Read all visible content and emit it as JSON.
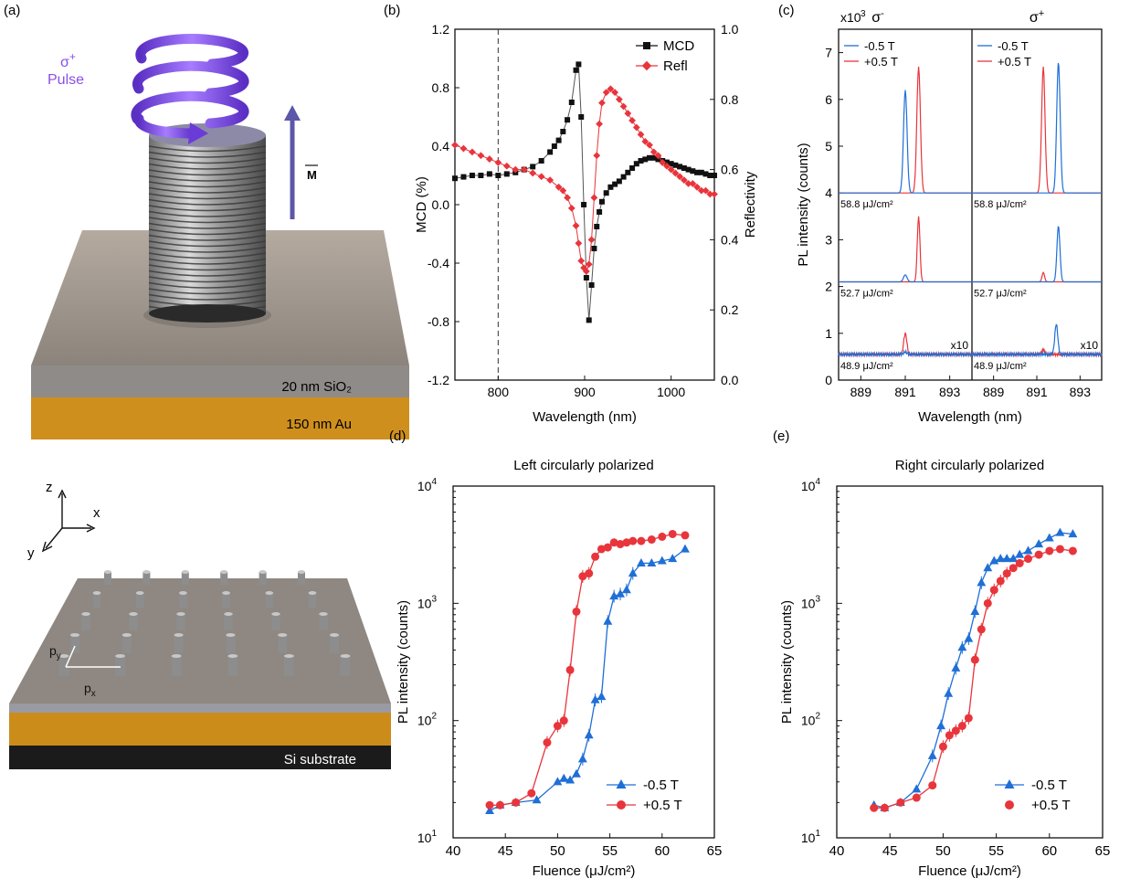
{
  "colors": {
    "blue": "#1f6fd6",
    "red": "#e8353c",
    "black": "#111111",
    "purple": "#7b3fe0",
    "gold": "#d89a1f"
  },
  "panel_a": {
    "label": "(a)",
    "pulse_sigma": "σ",
    "pulse_sup": "+",
    "pulse_word": "Pulse",
    "magnet_label": "M",
    "layer_sio2": "20 nm SiO₂",
    "layer_au": "150 nm Au"
  },
  "panel_array": {
    "axis_z": "z",
    "axis_x": "x",
    "axis_y": "y",
    "py_main": "p",
    "py_sub": "y",
    "px_main": "p",
    "px_sub": "x",
    "substrate": "Si substrate"
  },
  "chart_data": [
    {
      "panel": "(b)",
      "type": "line",
      "xlabel": "Wavelength (nm)",
      "ylabel_left": "MCD (%)",
      "ylabel_right": "Reflectivity",
      "xlim": [
        750,
        1050
      ],
      "ylim_left": [
        -1.2,
        1.2
      ],
      "ylim_right": [
        0.0,
        1.0
      ],
      "xticks": [
        "800",
        "900",
        "1000"
      ],
      "yticks_left": [
        "-1.2",
        "-0.8",
        "-0.4",
        "0.0",
        "0.4",
        "0.8",
        "1.2"
      ],
      "yticks_right": [
        "0.0",
        "0.2",
        "0.4",
        "0.6",
        "0.8",
        "1.0"
      ],
      "dashed_line_x": 800,
      "legend": [
        "MCD",
        "Refl"
      ],
      "series": [
        {
          "name": "MCD",
          "axis": "left",
          "marker": "square",
          "x": [
            750,
            760,
            770,
            780,
            790,
            800,
            810,
            820,
            830,
            840,
            850,
            860,
            865,
            870,
            875,
            880,
            885,
            890,
            893,
            896,
            899,
            902,
            905,
            908,
            911,
            914,
            917,
            920,
            925,
            930,
            935,
            940,
            945,
            950,
            955,
            960,
            965,
            970,
            975,
            980,
            985,
            990,
            995,
            1000,
            1005,
            1010,
            1015,
            1020,
            1025,
            1030,
            1035,
            1040,
            1045,
            1050
          ],
          "y": [
            0.18,
            0.19,
            0.2,
            0.2,
            0.21,
            0.2,
            0.21,
            0.22,
            0.24,
            0.26,
            0.3,
            0.36,
            0.4,
            0.44,
            0.5,
            0.58,
            0.7,
            0.92,
            0.96,
            0.6,
            0.0,
            -0.5,
            -0.79,
            -0.55,
            -0.3,
            -0.15,
            -0.05,
            0.02,
            0.08,
            0.12,
            0.14,
            0.16,
            0.19,
            0.22,
            0.25,
            0.28,
            0.3,
            0.31,
            0.32,
            0.32,
            0.31,
            0.3,
            0.29,
            0.28,
            0.27,
            0.26,
            0.25,
            0.24,
            0.23,
            0.22,
            0.22,
            0.21,
            0.2,
            0.2
          ]
        },
        {
          "name": "Refl",
          "axis": "right",
          "marker": "diamond",
          "x": [
            750,
            760,
            770,
            780,
            790,
            800,
            810,
            820,
            830,
            840,
            850,
            860,
            870,
            875,
            880,
            885,
            890,
            893,
            896,
            899,
            902,
            905,
            908,
            911,
            914,
            917,
            920,
            925,
            930,
            935,
            940,
            945,
            950,
            955,
            960,
            965,
            970,
            975,
            980,
            985,
            990,
            995,
            1000,
            1005,
            1010,
            1015,
            1020,
            1025,
            1030,
            1035,
            1040,
            1045,
            1050
          ],
          "y": [
            0.67,
            0.66,
            0.65,
            0.64,
            0.63,
            0.62,
            0.61,
            0.6,
            0.6,
            0.59,
            0.58,
            0.57,
            0.55,
            0.54,
            0.52,
            0.49,
            0.44,
            0.39,
            0.34,
            0.32,
            0.31,
            0.33,
            0.4,
            0.52,
            0.64,
            0.73,
            0.79,
            0.82,
            0.83,
            0.82,
            0.8,
            0.78,
            0.76,
            0.74,
            0.72,
            0.7,
            0.68,
            0.67,
            0.65,
            0.64,
            0.62,
            0.61,
            0.6,
            0.59,
            0.58,
            0.57,
            0.56,
            0.56,
            0.55,
            0.54,
            0.54,
            0.53,
            0.53
          ]
        }
      ]
    },
    {
      "panel": "(c)",
      "type": "line",
      "xlabel": "Wavelength (nm)",
      "ylabel": "PL intensity (counts)",
      "y_multiplier": "x10",
      "y_multiplier_exp": "3",
      "xlim": [
        888,
        894
      ],
      "ylim": [
        0,
        7.5
      ],
      "yticks": [
        "0",
        "1",
        "2",
        "3",
        "4",
        "5",
        "6",
        "7"
      ],
      "xticks": [
        "889",
        "891",
        "893"
      ],
      "columns": [
        {
          "title": "σ",
          "title_sup": "-",
          "traces": [
            {
              "fluence": "58.8 μJ/cm²",
              "baseline": 4.0,
              "blue": {
                "center": 891.0,
                "height": 2.2,
                "width": 0.08
              },
              "red": {
                "center": 891.6,
                "height": 2.7,
                "width": 0.08
              }
            },
            {
              "fluence": "52.7 μJ/cm²",
              "baseline": 2.1,
              "blue": {
                "center": 891.0,
                "height": 0.15,
                "width": 0.08
              },
              "red": {
                "center": 891.6,
                "height": 1.4,
                "width": 0.06
              }
            },
            {
              "fluence": "48.9 μJ/cm²",
              "baseline": 0.55,
              "multiplier": "x10",
              "blue": {
                "center": 891.0,
                "height": 0.05,
                "width": 0.08
              },
              "red": {
                "center": 891.0,
                "height": 0.45,
                "width": 0.07
              }
            }
          ]
        },
        {
          "title": "σ",
          "title_sup": "+",
          "traces": [
            {
              "fluence": "58.8 μJ/cm²",
              "baseline": 4.0,
              "red": {
                "center": 891.3,
                "height": 2.7,
                "width": 0.08
              },
              "blue": {
                "center": 892.0,
                "height": 2.8,
                "width": 0.08
              }
            },
            {
              "fluence": "52.7 μJ/cm²",
              "baseline": 2.1,
              "red": {
                "center": 891.3,
                "height": 0.2,
                "width": 0.06
              },
              "blue": {
                "center": 892.0,
                "height": 1.2,
                "width": 0.07
              }
            },
            {
              "fluence": "48.9 μJ/cm²",
              "baseline": 0.55,
              "multiplier": "x10",
              "red": {
                "center": 891.3,
                "height": 0.1,
                "width": 0.07
              },
              "blue": {
                "center": 891.9,
                "height": 0.65,
                "width": 0.07
              }
            }
          ]
        }
      ],
      "legend": [
        "-0.5 T",
        "+0.5 T"
      ]
    },
    {
      "panel": "(d)",
      "type": "scatter",
      "title": "Left circularly polarized",
      "xlabel": "Fluence (μJ/cm²)",
      "ylabel": "PL intensity (counts)",
      "xlim": [
        40,
        65
      ],
      "ylim": [
        10,
        10000
      ],
      "yscale": "log",
      "xticks": [
        "40",
        "45",
        "50",
        "55",
        "60",
        "65"
      ],
      "yticks": [
        {
          "base": "10",
          "exp": "1"
        },
        {
          "base": "10",
          "exp": "2"
        },
        {
          "base": "10",
          "exp": "3"
        },
        {
          "base": "10",
          "exp": "4"
        }
      ],
      "legend": [
        "-0.5 T",
        "+0.5 T"
      ],
      "series": [
        {
          "name": "-0.5 T",
          "marker": "triangle",
          "x": [
            43.5,
            44.5,
            46,
            48,
            50,
            50.6,
            51.2,
            51.8,
            52.4,
            53,
            53.6,
            54.2,
            54.8,
            55.4,
            56,
            56.6,
            57.2,
            58,
            59,
            60,
            61,
            62.2
          ],
          "y": [
            17,
            19,
            20,
            21,
            30,
            32,
            31,
            35,
            47,
            75,
            150,
            160,
            700,
            1150,
            1200,
            1300,
            1800,
            2200,
            2200,
            2300,
            2400,
            2900
          ]
        },
        {
          "name": "+0.5 T",
          "marker": "circle",
          "x": [
            43.5,
            44.5,
            46,
            47.5,
            49,
            50,
            50.6,
            51.2,
            51.8,
            52.4,
            53,
            53.6,
            54.2,
            54.8,
            55.4,
            56,
            56.6,
            57.2,
            58,
            59,
            60,
            61,
            62.2
          ],
          "y": [
            19,
            19,
            20,
            24,
            65,
            90,
            100,
            270,
            850,
            1700,
            1800,
            2500,
            2900,
            3000,
            3300,
            3200,
            3300,
            3400,
            3400,
            3500,
            3700,
            3900,
            3800
          ]
        }
      ]
    },
    {
      "panel": "(e)",
      "type": "scatter",
      "title": "Right circularly polarized",
      "xlabel": "Fluence (μJ/cm²)",
      "ylabel": "PL intensity (counts)",
      "xlim": [
        40,
        65
      ],
      "ylim": [
        10,
        10000
      ],
      "yscale": "log",
      "xticks": [
        "40",
        "45",
        "50",
        "55",
        "60",
        "65"
      ],
      "yticks": [
        {
          "base": "10",
          "exp": "1"
        },
        {
          "base": "10",
          "exp": "2"
        },
        {
          "base": "10",
          "exp": "3"
        },
        {
          "base": "10",
          "exp": "4"
        }
      ],
      "legend": [
        "-0.5 T",
        "+0.5 T"
      ],
      "series": [
        {
          "name": "-0.5 T",
          "marker": "triangle",
          "x": [
            43.5,
            44.5,
            46,
            47.5,
            49,
            49.8,
            50.5,
            51.2,
            51.8,
            52.4,
            53,
            53.6,
            54.2,
            54.8,
            55.4,
            56,
            56.6,
            57.2,
            58,
            59,
            60,
            61,
            62.2
          ],
          "y": [
            19,
            18,
            20,
            26,
            50,
            90,
            170,
            280,
            420,
            500,
            850,
            1500,
            2000,
            2300,
            2400,
            2400,
            2400,
            2600,
            2800,
            3200,
            3600,
            4000,
            3900
          ]
        },
        {
          "name": "+0.5 T",
          "marker": "circle",
          "x": [
            43.5,
            44.5,
            46,
            47.5,
            49,
            50,
            50.6,
            51.2,
            51.8,
            52.4,
            53,
            53.6,
            54.2,
            54.8,
            55.4,
            56,
            56.6,
            57.2,
            58,
            59,
            60,
            61,
            62.2
          ],
          "y": [
            18,
            18,
            20,
            22,
            28,
            60,
            75,
            82,
            90,
            105,
            330,
            600,
            1000,
            1300,
            1550,
            1800,
            2000,
            2200,
            2400,
            2600,
            2800,
            2900,
            2800
          ]
        }
      ]
    }
  ]
}
